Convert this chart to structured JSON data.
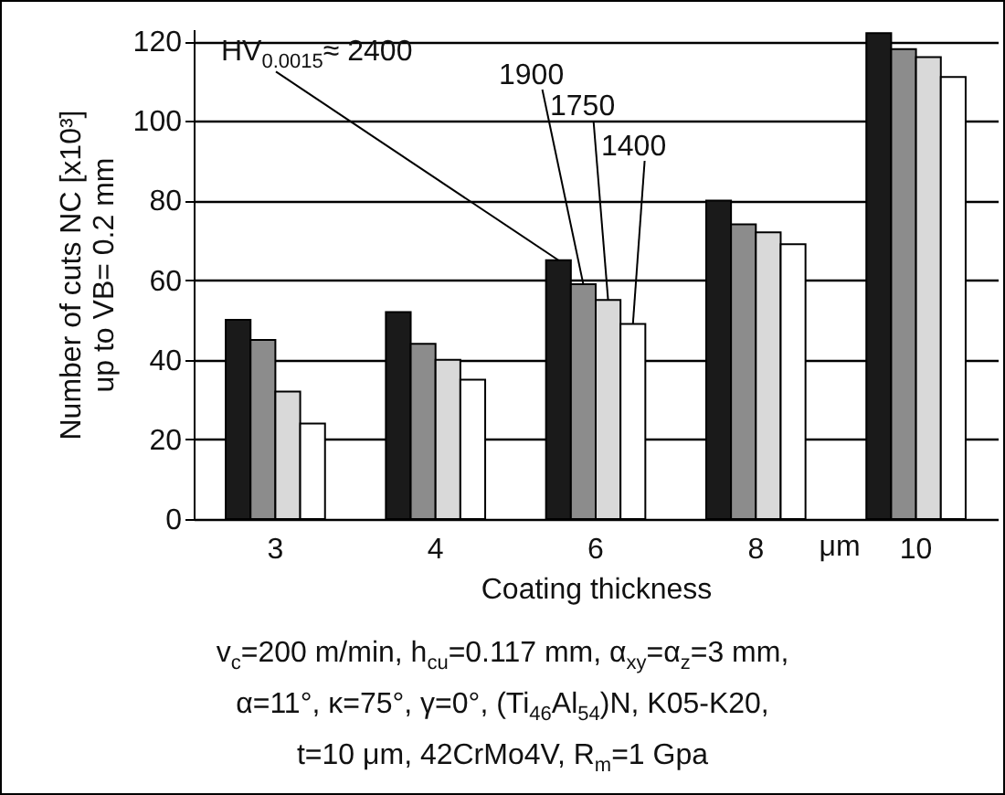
{
  "chart_data": {
    "type": "bar",
    "categories": [
      "3",
      "4",
      "6",
      "8",
      "10"
    ],
    "series": [
      {
        "name": "HV$_{0.0015}$≈ 2400",
        "color": "#1a1a1a",
        "values": [
          50,
          52,
          65,
          80,
          122
        ]
      },
      {
        "name": "1900",
        "color": "#8c8c8c",
        "values": [
          45,
          44,
          59,
          74,
          118
        ]
      },
      {
        "name": "1750",
        "color": "#d9d9d9",
        "values": [
          32,
          40,
          55,
          72,
          116
        ]
      },
      {
        "name": "1400",
        "color": "#ffffff",
        "values": [
          24,
          35,
          49,
          69,
          111
        ]
      }
    ],
    "xlabel": "Coating thickness",
    "ylabel": "Number of cuts NC [x10³]\nup to VB= 0.2 mm",
    "ylim": [
      0,
      123
    ],
    "yticks": [
      0,
      20,
      40,
      60,
      80,
      100,
      120
    ],
    "grid": "y",
    "annotations": [
      "μm",
      "v$_{c}$=200 m/min, h$_{cu}$=0.117 mm, α$_{xy}$=α$_{z}$=3 mm,",
      "α=11°, κ=75°, γ=0°, (Ti$_{46}$Al$_{54}$)N, K05-K20,",
      "t=10 μm, 42CrMo4V, R$_{m}$=1 Gpa"
    ]
  }
}
